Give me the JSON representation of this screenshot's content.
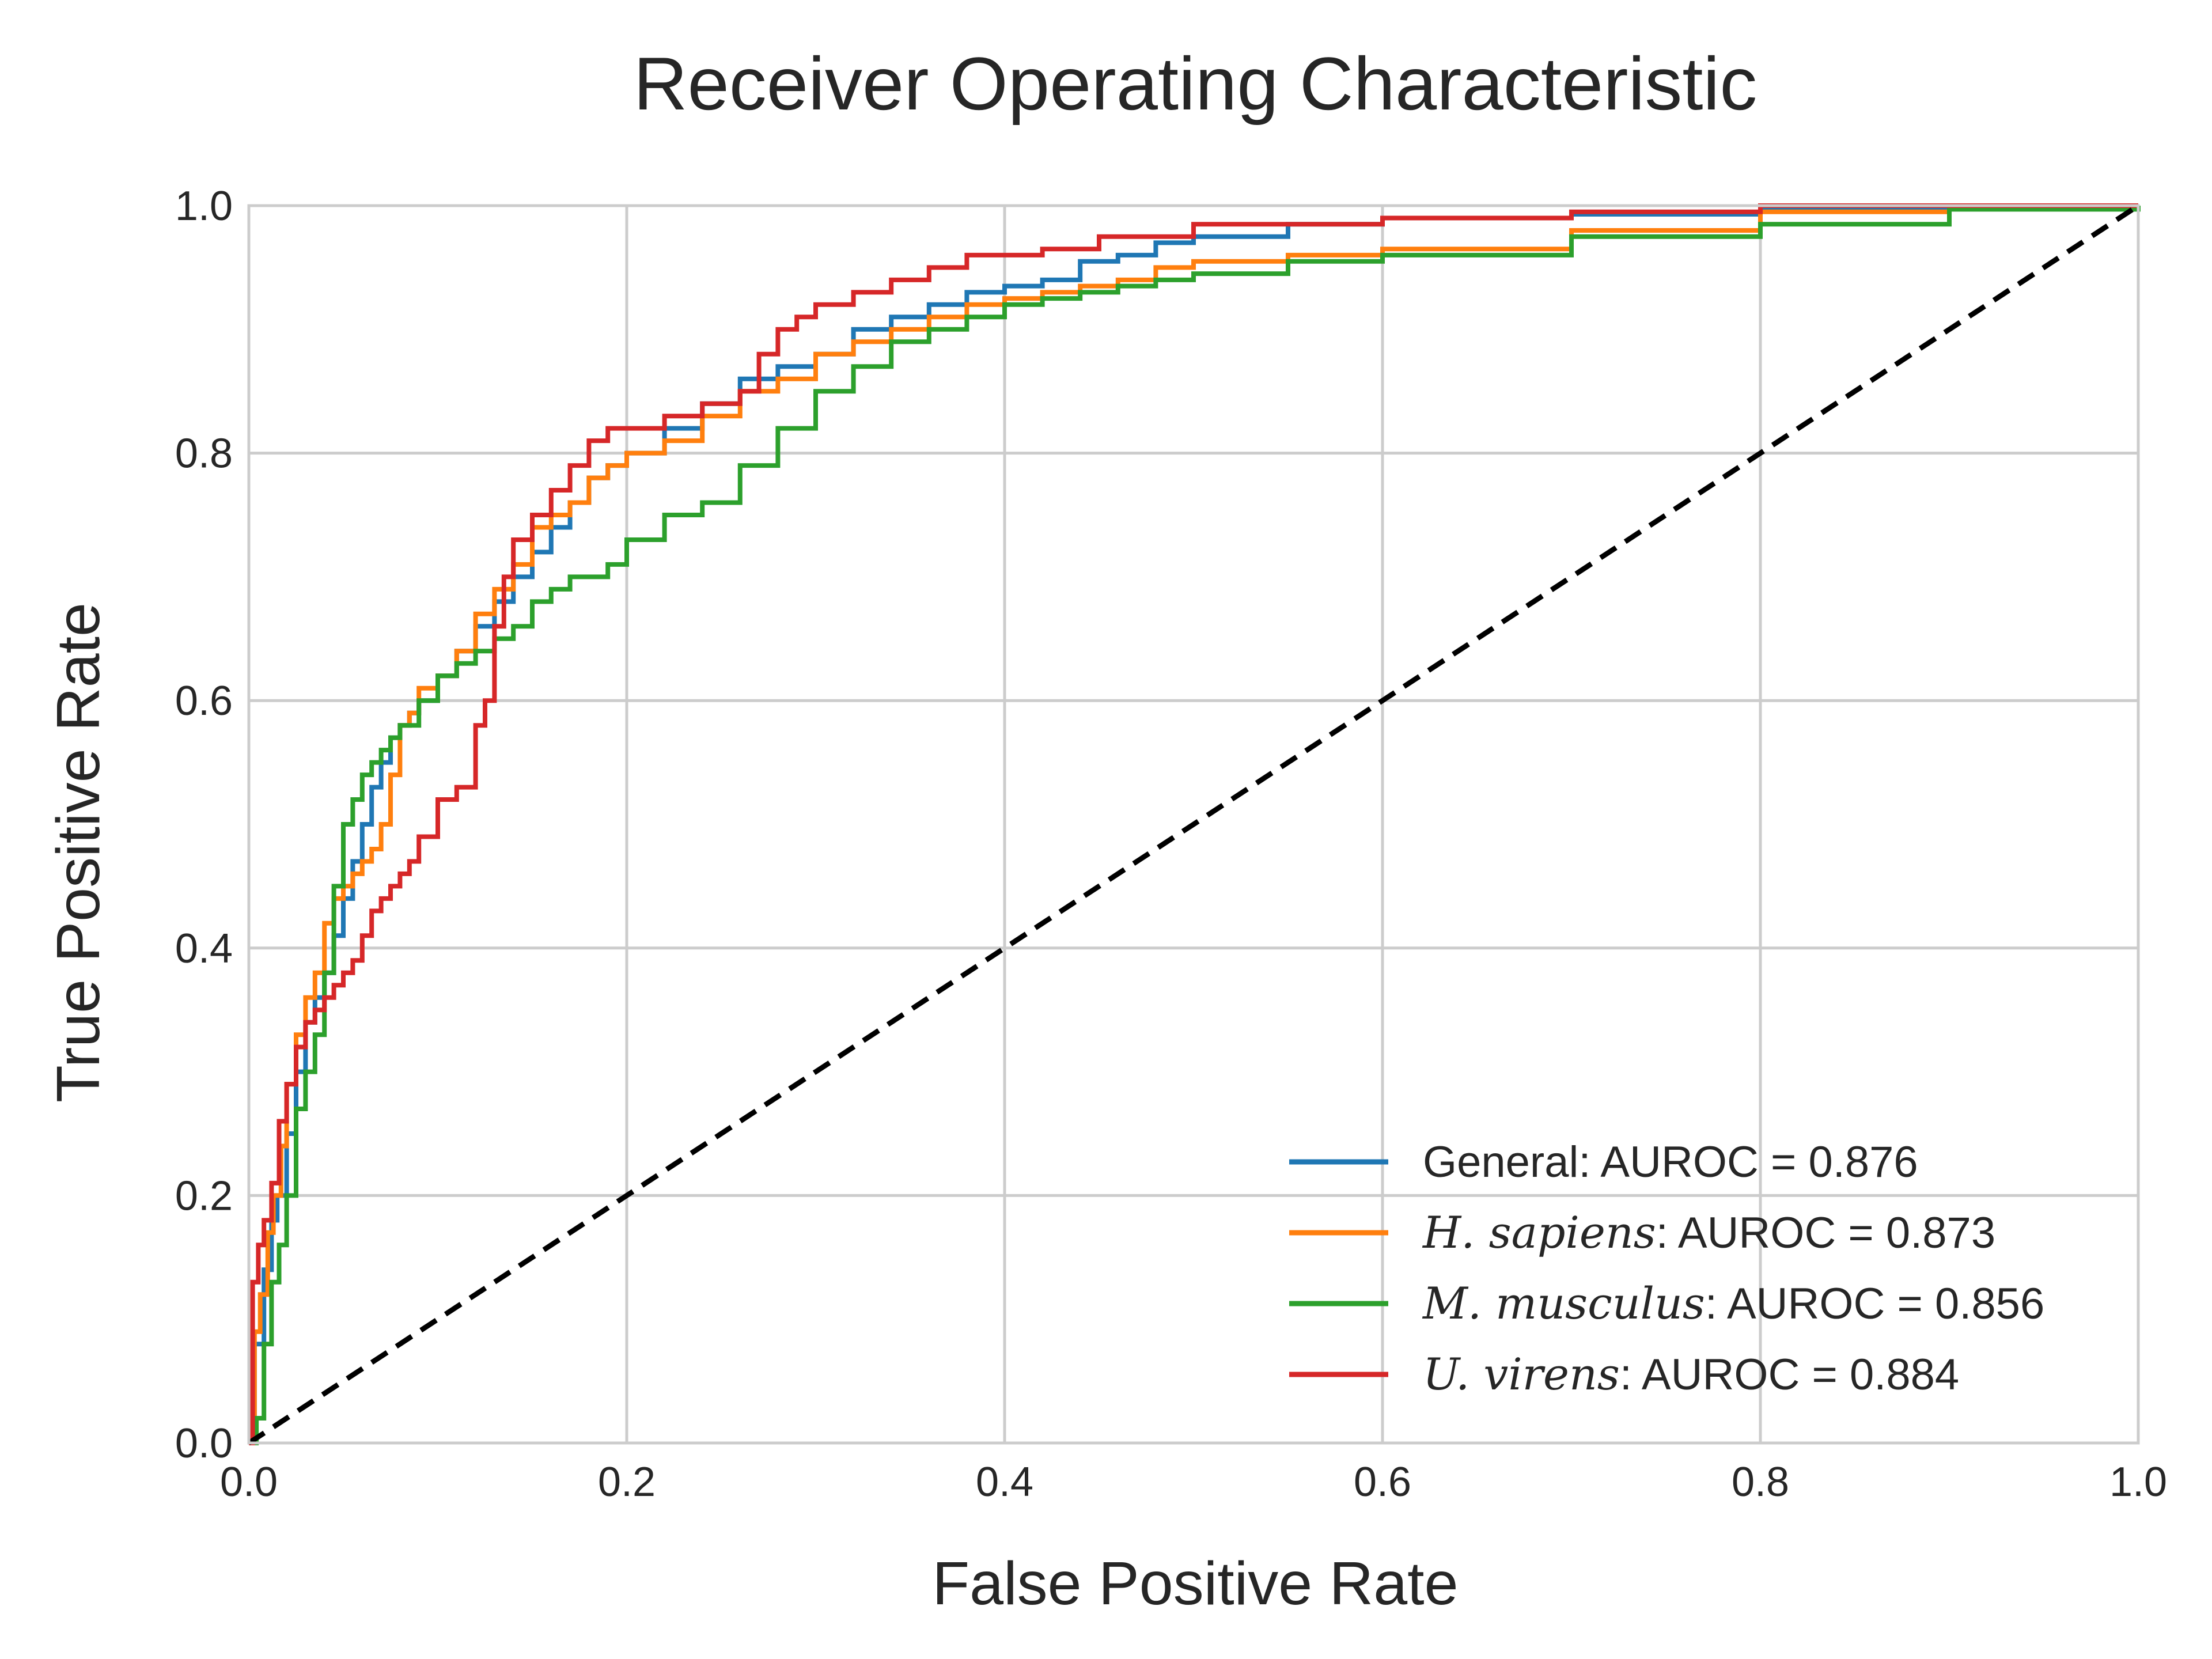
{
  "chart_data": {
    "type": "line",
    "title": "Receiver Operating Characteristic",
    "xlabel": "False Positive Rate",
    "ylabel": "True Positive Rate",
    "xlim": [
      0.0,
      1.0
    ],
    "ylim": [
      0.0,
      1.0
    ],
    "xticks": [
      "0.0",
      "0.2",
      "0.4",
      "0.6",
      "0.8",
      "1.0"
    ],
    "yticks": [
      "0.0",
      "0.2",
      "0.4",
      "0.6",
      "0.8",
      "1.0"
    ],
    "grid": true,
    "legend_position": "lower-right",
    "series": [
      {
        "name": "General",
        "name_italic": false,
        "auroc_text": ": AUROC = 0.876",
        "color": "#1f77b4",
        "x": [
          0,
          0.003,
          0.008,
          0.012,
          0.015,
          0.02,
          0.025,
          0.03,
          0.035,
          0.04,
          0.045,
          0.05,
          0.055,
          0.06,
          0.065,
          0.07,
          0.075,
          0.08,
          0.085,
          0.09,
          0.1,
          0.11,
          0.12,
          0.13,
          0.14,
          0.15,
          0.16,
          0.17,
          0.18,
          0.19,
          0.2,
          0.22,
          0.24,
          0.26,
          0.28,
          0.3,
          0.32,
          0.34,
          0.36,
          0.38,
          0.4,
          0.42,
          0.44,
          0.46,
          0.48,
          0.5,
          0.55,
          0.6,
          0.7,
          0.8,
          0.9,
          1.0
        ],
        "y": [
          0,
          0.08,
          0.14,
          0.18,
          0.2,
          0.25,
          0.3,
          0.34,
          0.36,
          0.38,
          0.41,
          0.44,
          0.47,
          0.5,
          0.53,
          0.55,
          0.57,
          0.58,
          0.59,
          0.6,
          0.62,
          0.64,
          0.66,
          0.68,
          0.7,
          0.72,
          0.74,
          0.76,
          0.78,
          0.79,
          0.8,
          0.82,
          0.84,
          0.86,
          0.87,
          0.88,
          0.9,
          0.91,
          0.92,
          0.93,
          0.935,
          0.94,
          0.955,
          0.96,
          0.97,
          0.975,
          0.985,
          0.99,
          0.993,
          0.997,
          1.0,
          1.0
        ]
      },
      {
        "name": "H. sapiens",
        "name_italic": true,
        "auroc_text": ": AUROC = 0.873",
        "color": "#ff7f0e",
        "x": [
          0,
          0.003,
          0.006,
          0.01,
          0.013,
          0.017,
          0.02,
          0.025,
          0.03,
          0.035,
          0.04,
          0.045,
          0.05,
          0.055,
          0.06,
          0.065,
          0.07,
          0.075,
          0.08,
          0.085,
          0.09,
          0.1,
          0.11,
          0.12,
          0.13,
          0.14,
          0.15,
          0.16,
          0.17,
          0.18,
          0.19,
          0.2,
          0.22,
          0.24,
          0.26,
          0.28,
          0.3,
          0.32,
          0.34,
          0.36,
          0.38,
          0.4,
          0.42,
          0.44,
          0.46,
          0.48,
          0.5,
          0.55,
          0.6,
          0.7,
          0.8,
          0.9,
          1.0
        ],
        "y": [
          0,
          0.09,
          0.12,
          0.17,
          0.2,
          0.24,
          0.29,
          0.33,
          0.36,
          0.38,
          0.42,
          0.44,
          0.45,
          0.46,
          0.47,
          0.48,
          0.5,
          0.54,
          0.58,
          0.59,
          0.61,
          0.62,
          0.64,
          0.67,
          0.69,
          0.71,
          0.74,
          0.75,
          0.76,
          0.78,
          0.79,
          0.8,
          0.81,
          0.83,
          0.85,
          0.86,
          0.88,
          0.89,
          0.9,
          0.91,
          0.92,
          0.925,
          0.93,
          0.935,
          0.94,
          0.95,
          0.955,
          0.96,
          0.965,
          0.98,
          0.995,
          1.0,
          1.0
        ]
      },
      {
        "name": "M. musculus",
        "name_italic": true,
        "auroc_text": ": AUROC = 0.856",
        "color": "#2ca02c",
        "x": [
          0,
          0.004,
          0.008,
          0.012,
          0.016,
          0.02,
          0.025,
          0.03,
          0.035,
          0.04,
          0.045,
          0.05,
          0.055,
          0.06,
          0.065,
          0.07,
          0.075,
          0.08,
          0.09,
          0.1,
          0.11,
          0.12,
          0.13,
          0.14,
          0.15,
          0.16,
          0.17,
          0.18,
          0.19,
          0.2,
          0.22,
          0.24,
          0.26,
          0.28,
          0.3,
          0.32,
          0.34,
          0.36,
          0.38,
          0.4,
          0.42,
          0.44,
          0.46,
          0.48,
          0.5,
          0.55,
          0.6,
          0.7,
          0.8,
          0.9,
          1.0
        ],
        "y": [
          0,
          0.02,
          0.08,
          0.13,
          0.16,
          0.2,
          0.27,
          0.3,
          0.33,
          0.38,
          0.45,
          0.5,
          0.52,
          0.54,
          0.55,
          0.56,
          0.57,
          0.58,
          0.6,
          0.62,
          0.63,
          0.64,
          0.65,
          0.66,
          0.68,
          0.69,
          0.7,
          0.7,
          0.71,
          0.73,
          0.75,
          0.76,
          0.79,
          0.82,
          0.85,
          0.87,
          0.89,
          0.9,
          0.91,
          0.92,
          0.925,
          0.93,
          0.935,
          0.94,
          0.945,
          0.955,
          0.96,
          0.975,
          0.985,
          0.997,
          1.0
        ]
      },
      {
        "name": "U. virens",
        "name_italic": true,
        "auroc_text": ": AUROC = 0.884",
        "color": "#d62728",
        "x": [
          0,
          0.002,
          0.005,
          0.008,
          0.012,
          0.016,
          0.02,
          0.025,
          0.03,
          0.035,
          0.04,
          0.045,
          0.05,
          0.055,
          0.06,
          0.065,
          0.07,
          0.075,
          0.08,
          0.085,
          0.09,
          0.1,
          0.11,
          0.12,
          0.125,
          0.13,
          0.135,
          0.14,
          0.15,
          0.16,
          0.17,
          0.18,
          0.19,
          0.2,
          0.22,
          0.24,
          0.26,
          0.27,
          0.28,
          0.29,
          0.3,
          0.32,
          0.34,
          0.36,
          0.38,
          0.4,
          0.42,
          0.45,
          0.5,
          0.6,
          0.7,
          0.8,
          0.9,
          1.0
        ],
        "y": [
          0,
          0.13,
          0.16,
          0.18,
          0.21,
          0.26,
          0.29,
          0.32,
          0.34,
          0.35,
          0.36,
          0.37,
          0.38,
          0.39,
          0.41,
          0.43,
          0.44,
          0.45,
          0.46,
          0.47,
          0.49,
          0.52,
          0.53,
          0.58,
          0.6,
          0.66,
          0.7,
          0.73,
          0.75,
          0.77,
          0.79,
          0.81,
          0.82,
          0.82,
          0.83,
          0.84,
          0.85,
          0.88,
          0.9,
          0.91,
          0.92,
          0.93,
          0.94,
          0.95,
          0.96,
          0.96,
          0.965,
          0.975,
          0.985,
          0.99,
          0.995,
          1.0,
          1.0,
          1.0
        ]
      }
    ],
    "reference_line": {
      "style": "dashed",
      "color": "#000000",
      "x": [
        0,
        1
      ],
      "y": [
        0,
        1
      ]
    }
  }
}
